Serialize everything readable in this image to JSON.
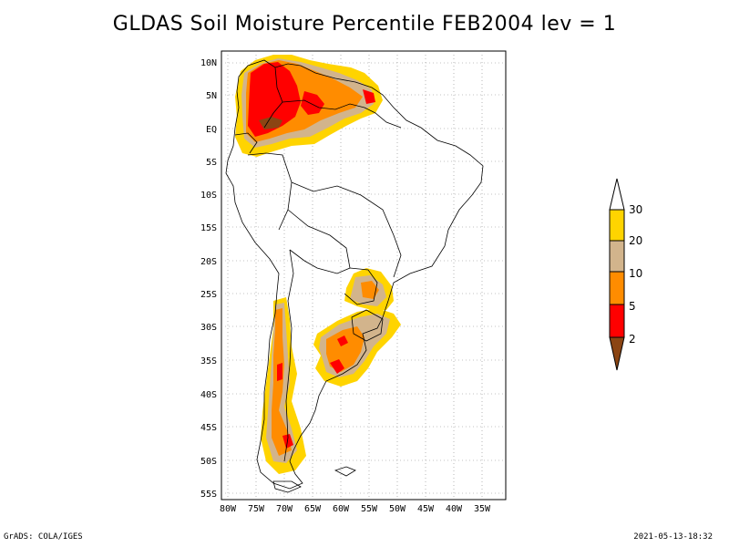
{
  "title": "GLDAS Soil Moisture Percentile FEB2004 lev = 1",
  "map": {
    "lon_ticks": [
      "80W",
      "75W",
      "70W",
      "65W",
      "60W",
      "55W",
      "50W",
      "45W",
      "40W",
      "35W"
    ],
    "lat_ticks": [
      "10N",
      "5N",
      "EQ",
      "5S",
      "10S",
      "15S",
      "20S",
      "25S",
      "30S",
      "35S",
      "40S",
      "45S",
      "50S",
      "55S"
    ],
    "region": "South America"
  },
  "colorbar": {
    "labels": [
      "30",
      "20",
      "10",
      "5",
      "2"
    ],
    "colors": {
      "gt30": "#ffffff",
      "c20_30": "#ffd400",
      "c10_20": "#d2b48c",
      "c5_10": "#ff8c00",
      "c2_5": "#ff0000",
      "lt2": "#8b4513"
    }
  },
  "footer": {
    "left": "GrADS: COLA/IGES",
    "right": "2021-05-13-18:32"
  }
}
